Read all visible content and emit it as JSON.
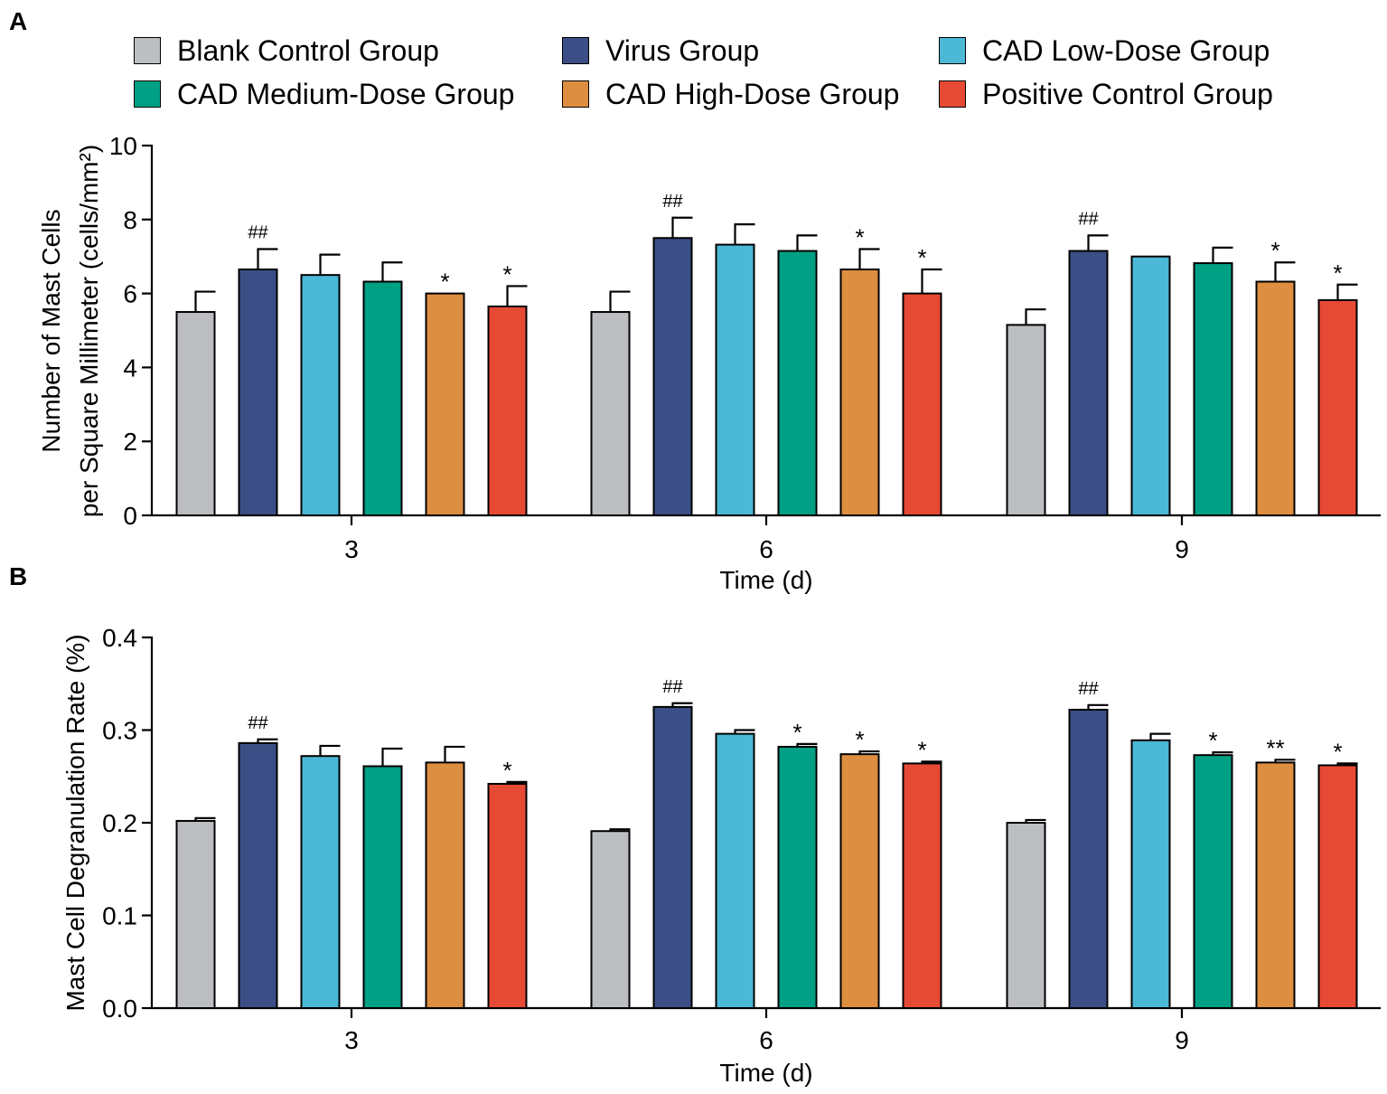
{
  "panels": {
    "a": "A",
    "b": "B"
  },
  "legend": [
    {
      "name": "Blank Control Group",
      "color": "#bcbec2"
    },
    {
      "name": "Virus Group",
      "color": "#3b4f86"
    },
    {
      "name": "CAD Low-Dose Group",
      "color": "#4bb8d6"
    },
    {
      "name": "CAD Medium-Dose Group",
      "color": "#00a085"
    },
    {
      "name": "CAD High-Dose Group",
      "color": "#dd8e40"
    },
    {
      "name": "Positive Control Group",
      "color": "#e64a35"
    }
  ],
  "chart_data": [
    {
      "type": "bar",
      "panel": "A",
      "title": "",
      "xlabel": "Time (d)",
      "ylabel_line1": "Number of Mast Cells",
      "ylabel_line2": "per Square Millimeter (cells/mm²)",
      "ylim": [
        0,
        10
      ],
      "yticks": [
        "0",
        "2",
        "4",
        "6",
        "8",
        "10"
      ],
      "ytick_values": [
        0,
        2,
        4,
        6,
        8,
        10
      ],
      "categories": [
        "3",
        "6",
        "9"
      ],
      "series": [
        {
          "name": "Blank Control Group",
          "values": [
            5.5,
            5.5,
            5.15
          ],
          "errors": [
            0.55,
            0.55,
            0.42
          ],
          "marks": [
            "",
            "",
            ""
          ]
        },
        {
          "name": "Virus Group",
          "values": [
            6.65,
            7.5,
            7.15
          ],
          "errors": [
            0.55,
            0.55,
            0.42
          ],
          "marks": [
            "##",
            "##",
            "##"
          ]
        },
        {
          "name": "CAD Low-Dose Group",
          "values": [
            6.5,
            7.32,
            7.0
          ],
          "errors": [
            0.55,
            0.55,
            0.0
          ],
          "marks": [
            "",
            "",
            ""
          ]
        },
        {
          "name": "CAD Medium-Dose Group",
          "values": [
            6.32,
            7.15,
            6.82
          ],
          "errors": [
            0.52,
            0.42,
            0.42
          ],
          "marks": [
            "",
            "",
            ""
          ]
        },
        {
          "name": "CAD High-Dose Group",
          "values": [
            6.0,
            6.65,
            6.32
          ],
          "errors": [
            0.0,
            0.55,
            0.52
          ],
          "marks": [
            "*",
            "*",
            "*"
          ]
        },
        {
          "name": "Positive Control Group",
          "values": [
            5.65,
            6.0,
            5.82
          ],
          "errors": [
            0.55,
            0.65,
            0.42
          ],
          "marks": [
            "*",
            "*",
            "*"
          ]
        }
      ]
    },
    {
      "type": "bar",
      "panel": "B",
      "title": "",
      "xlabel": "Time (d)",
      "ylabel": "Mast Cell Degranulation Rate (%)",
      "ylim": [
        0,
        0.4
      ],
      "yticks": [
        "0.0",
        "0.1",
        "0.2",
        "0.3",
        "0.4"
      ],
      "ytick_values": [
        0,
        0.1,
        0.2,
        0.3,
        0.4
      ],
      "categories": [
        "3",
        "6",
        "9"
      ],
      "series": [
        {
          "name": "Blank Control Group",
          "values": [
            0.202,
            0.191,
            0.2
          ],
          "errors": [
            0.003,
            0.002,
            0.003
          ],
          "marks": [
            "",
            "",
            ""
          ]
        },
        {
          "name": "Virus Group",
          "values": [
            0.286,
            0.325,
            0.322
          ],
          "errors": [
            0.004,
            0.004,
            0.005
          ],
          "marks": [
            "##",
            "##",
            "##"
          ]
        },
        {
          "name": "CAD Low-Dose Group",
          "values": [
            0.272,
            0.296,
            0.289
          ],
          "errors": [
            0.011,
            0.004,
            0.007
          ],
          "marks": [
            "",
            "",
            ""
          ]
        },
        {
          "name": "CAD Medium-Dose Group",
          "values": [
            0.261,
            0.282,
            0.273
          ],
          "errors": [
            0.019,
            0.003,
            0.003
          ],
          "marks": [
            "",
            "*",
            "*"
          ]
        },
        {
          "name": "CAD High-Dose Group",
          "values": [
            0.265,
            0.274,
            0.265
          ],
          "errors": [
            0.017,
            0.003,
            0.003
          ],
          "marks": [
            "",
            "*",
            "**"
          ]
        },
        {
          "name": "Positive Control Group",
          "values": [
            0.242,
            0.264,
            0.262
          ],
          "errors": [
            0.002,
            0.002,
            0.002
          ],
          "marks": [
            "*",
            "*",
            "*"
          ]
        }
      ]
    }
  ]
}
